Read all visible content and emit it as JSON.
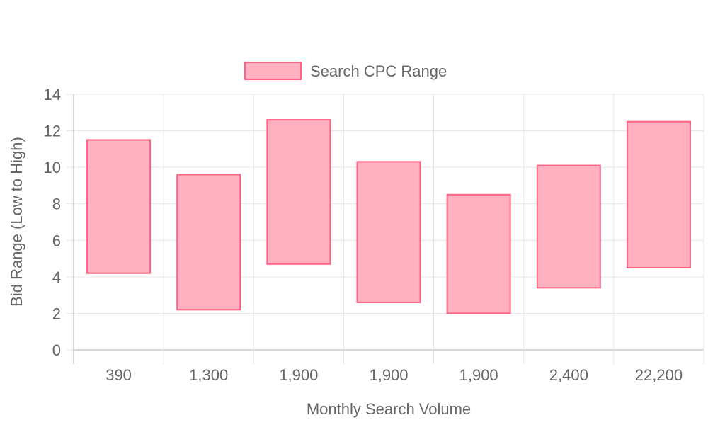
{
  "chart_data": {
    "type": "bar",
    "subtype": "floating-range",
    "categories": [
      "390",
      "1,300",
      "1,900",
      "1,900",
      "1,900",
      "2,400",
      "22,200"
    ],
    "series": [
      {
        "name": "Search CPC Range",
        "low": [
          4.2,
          2.2,
          4.7,
          2.6,
          2.0,
          3.4,
          4.5
        ],
        "high": [
          11.5,
          9.6,
          12.6,
          10.3,
          8.5,
          10.1,
          12.5
        ]
      }
    ],
    "xlabel": "Monthly Search Volume",
    "ylabel": "Bid Range (Low to High)",
    "ylim": [
      0,
      14
    ],
    "yticks": [
      0,
      2,
      4,
      6,
      8,
      10,
      12,
      14
    ],
    "grid": true,
    "legend": "top-center",
    "colors": {
      "fill": "#ffb1c1",
      "stroke": "#ff6384",
      "grid": "#e5e5e5",
      "axis": "#c8c8c8",
      "text": "#666666"
    }
  }
}
